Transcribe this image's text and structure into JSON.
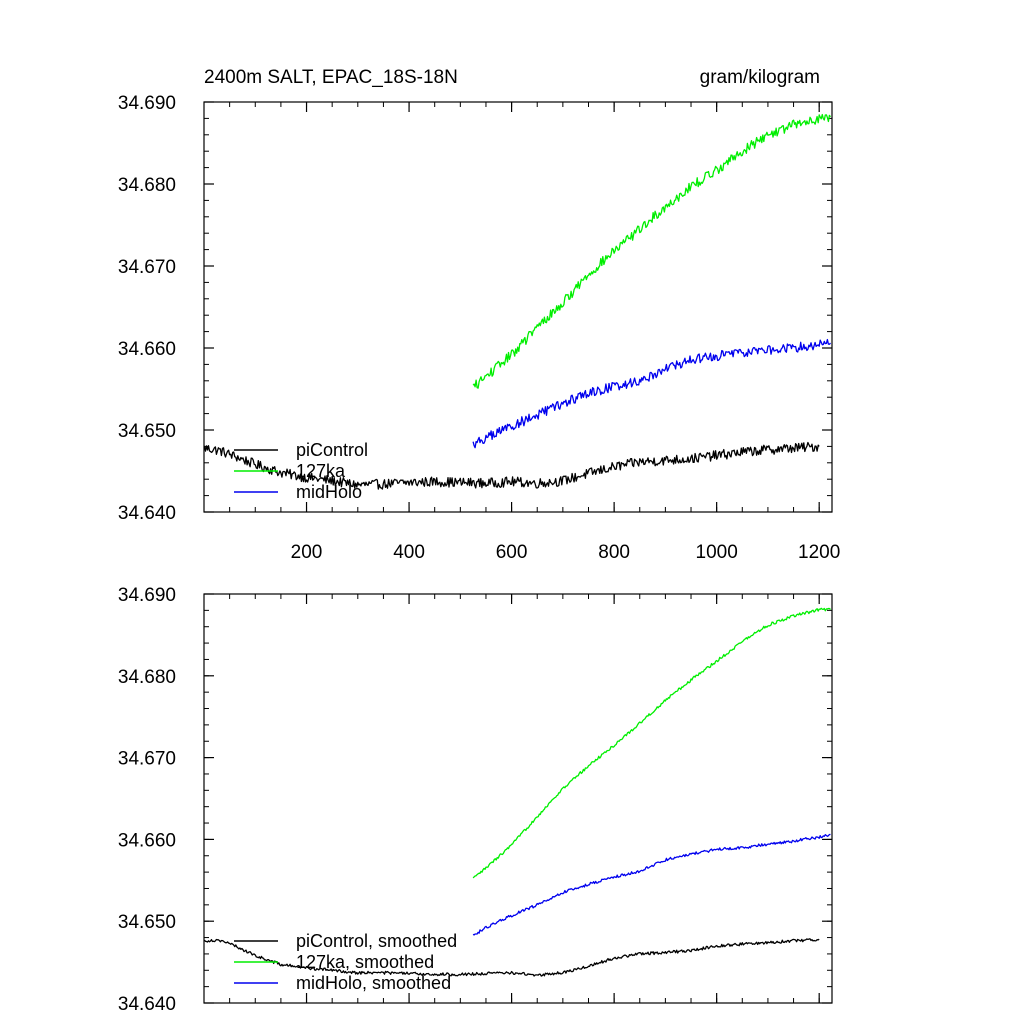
{
  "chart_data": [
    {
      "type": "line",
      "title": "2400m SALT, EPAC_18S-18N",
      "units": "gram/kilogram",
      "xlim": [
        0,
        1225
      ],
      "ylim": [
        34.64,
        34.69
      ],
      "xticks": [
        "200",
        "400",
        "600",
        "800",
        "1000",
        "1200"
      ],
      "xtick_values": [
        200,
        400,
        600,
        800,
        1000,
        1200
      ],
      "yticks": [
        "34.640",
        "34.650",
        "34.660",
        "34.670",
        "34.680",
        "34.690"
      ],
      "ytick_values": [
        34.64,
        34.65,
        34.66,
        34.67,
        34.68,
        34.69
      ],
      "show_xtick_labels": true,
      "noise": 0.0006,
      "legend": [
        "piControl",
        "127ka",
        "midHolo"
      ],
      "series": [
        {
          "name": "piControl",
          "color": "#000000",
          "x": [
            1,
            30,
            60,
            100,
            150,
            200,
            250,
            300,
            350,
            400,
            450,
            500,
            550,
            600,
            650,
            700,
            750,
            800,
            850,
            900,
            950,
            1000,
            1050,
            1100,
            1150,
            1200
          ],
          "y": [
            34.6478,
            34.6475,
            34.6468,
            34.6458,
            34.6448,
            34.6442,
            34.6438,
            34.6433,
            34.6434,
            34.6436,
            34.6437,
            34.6436,
            34.6435,
            34.6437,
            34.6435,
            34.6438,
            34.6447,
            34.6455,
            34.6461,
            34.6463,
            34.6465,
            34.6469,
            34.6473,
            34.6476,
            34.6478,
            34.648
          ]
        },
        {
          "name": "127ka",
          "color": "#00ee00",
          "x": [
            525,
            550,
            600,
            650,
            700,
            750,
            800,
            850,
            900,
            950,
            1000,
            1050,
            1100,
            1150,
            1200,
            1222
          ],
          "y": [
            34.6552,
            34.6565,
            34.6592,
            34.6625,
            34.6655,
            34.669,
            34.6718,
            34.6745,
            34.6772,
            34.6797,
            34.6817,
            34.684,
            34.686,
            34.6872,
            34.688,
            34.6882
          ]
        },
        {
          "name": "midHolo",
          "color": "#0000ee",
          "x": [
            525,
            550,
            600,
            650,
            700,
            750,
            800,
            850,
            900,
            950,
            1000,
            1050,
            1100,
            1150,
            1200,
            1222
          ],
          "y": [
            34.6483,
            34.649,
            34.6505,
            34.6518,
            34.6532,
            34.6545,
            34.6553,
            34.656,
            34.6575,
            34.6585,
            34.659,
            34.6595,
            34.6598,
            34.66,
            34.6605,
            34.6606
          ]
        }
      ]
    },
    {
      "type": "line",
      "title": "",
      "units": "",
      "xlim": [
        0,
        1225
      ],
      "ylim": [
        34.64,
        34.69
      ],
      "xticks": [],
      "xtick_values": [
        200,
        400,
        600,
        800,
        1000,
        1200
      ],
      "yticks": [
        "34.640",
        "34.650",
        "34.660",
        "34.670",
        "34.680",
        "34.690"
      ],
      "ytick_values": [
        34.64,
        34.65,
        34.66,
        34.67,
        34.68,
        34.69
      ],
      "show_xtick_labels": false,
      "noise": 0.00018,
      "legend": [
        "piControl, smoothed",
        "127ka, smoothed",
        "midHolo, smoothed"
      ],
      "series": [
        {
          "name": "piControl, smoothed",
          "color": "#000000",
          "x": [
            1,
            30,
            60,
            100,
            150,
            200,
            250,
            300,
            350,
            400,
            450,
            500,
            550,
            600,
            650,
            700,
            750,
            800,
            850,
            900,
            950,
            1000,
            1050,
            1100,
            1150,
            1200
          ],
          "y": [
            34.6476,
            34.6477,
            34.647,
            34.6458,
            34.6447,
            34.6443,
            34.644,
            34.6437,
            34.6437,
            34.6436,
            34.6435,
            34.6435,
            34.6436,
            34.6437,
            34.6434,
            34.6437,
            34.6445,
            34.6455,
            34.646,
            34.6462,
            34.6464,
            34.647,
            34.6472,
            34.6474,
            34.6476,
            34.6478
          ]
        },
        {
          "name": "127ka, smoothed",
          "color": "#00ee00",
          "x": [
            525,
            550,
            600,
            650,
            700,
            750,
            800,
            850,
            900,
            950,
            1000,
            1050,
            1100,
            1150,
            1200,
            1222
          ],
          "y": [
            34.6552,
            34.6565,
            34.6593,
            34.6628,
            34.6662,
            34.669,
            34.6715,
            34.6742,
            34.677,
            34.6795,
            34.6818,
            34.6842,
            34.6862,
            34.6873,
            34.6881,
            34.6881
          ]
        },
        {
          "name": "midHolo, smoothed",
          "color": "#0000ee",
          "x": [
            525,
            550,
            600,
            650,
            700,
            750,
            800,
            850,
            900,
            950,
            1000,
            1050,
            1100,
            1150,
            1200,
            1222
          ],
          "y": [
            34.6483,
            34.6492,
            34.6507,
            34.652,
            34.6535,
            34.6545,
            34.6554,
            34.6561,
            34.6575,
            34.6582,
            34.6588,
            34.659,
            34.6594,
            34.6598,
            34.6603,
            34.6606
          ]
        }
      ]
    }
  ]
}
